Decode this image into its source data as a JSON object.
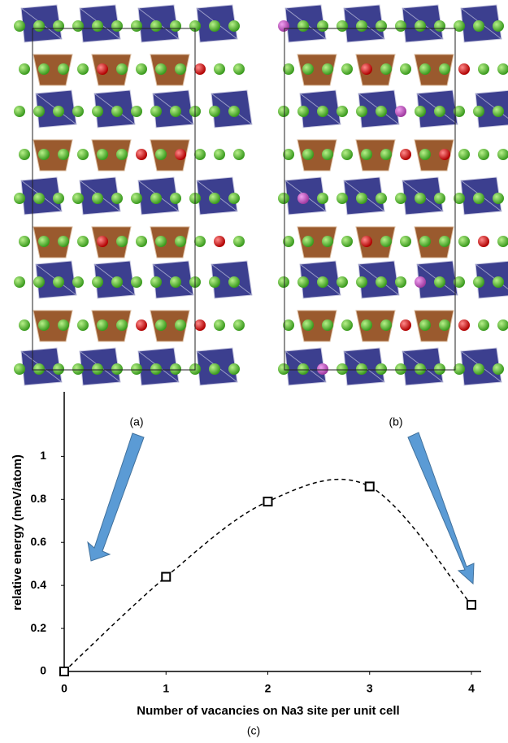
{
  "chart_data": {
    "type": "line",
    "panel_labels": [
      "(a)",
      "(b)",
      "(c)"
    ],
    "xlabel": "Number of vacancies on Na3 site per unit cell",
    "ylabel": "relative energy  (meV/atom)",
    "x": [
      0,
      1,
      2,
      3,
      4
    ],
    "values": [
      0,
      0.44,
      0.79,
      0.86,
      0.31
    ],
    "xlim": [
      0,
      4
    ],
    "xticks": [
      0,
      1,
      2,
      3,
      4
    ],
    "ylim": [
      0,
      1.3
    ],
    "yticks": [
      0,
      0.2,
      0.4,
      0.6,
      0.8,
      1
    ],
    "line_color": "#000000",
    "line_style": "dashed",
    "marker": "square",
    "grid": false
  }
}
